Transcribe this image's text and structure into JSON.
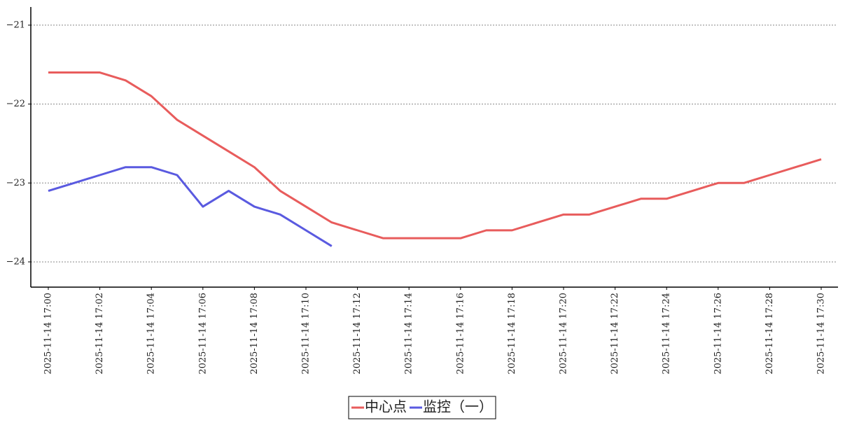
{
  "chart_data": {
    "type": "line",
    "categories": [
      "2025-11-14 17:00",
      null,
      "2025-11-14 17:02",
      null,
      "2025-11-14 17:04",
      null,
      "2025-11-14 17:06",
      null,
      "2025-11-14 17:08",
      null,
      "2025-11-14 17:10",
      null,
      "2025-11-14 17:12",
      null,
      "2025-11-14 17:14",
      null,
      "2025-11-14 17:16",
      null,
      "2025-11-14 17:18",
      null,
      "2025-11-14 17:20",
      null,
      "2025-11-14 17:22",
      null,
      "2025-11-14 17:24",
      null,
      "2025-11-14 17:26",
      null,
      "2025-11-14 17:28",
      null,
      "2025-11-14 17:30"
    ],
    "series": [
      {
        "name": "中心点",
        "color": "#e85c5c",
        "values": [
          -21.6,
          -21.6,
          -21.6,
          -21.7,
          -21.9,
          -22.2,
          -22.4,
          -22.6,
          -22.8,
          -23.1,
          -23.3,
          -23.5,
          -23.6,
          -23.7,
          -23.7,
          -23.7,
          -23.7,
          -23.6,
          -23.6,
          -23.5,
          -23.4,
          -23.4,
          -23.3,
          -23.2,
          -23.2,
          -23.1,
          -23.0,
          -23.0,
          -22.9,
          -22.8,
          -22.7
        ]
      },
      {
        "name": "监控（一）",
        "color": "#5a5ae0",
        "values": [
          -23.1,
          -23.0,
          -22.9,
          -22.8,
          -22.8,
          -22.9,
          -23.3,
          -23.1,
          -23.3,
          -23.4,
          -23.6,
          -23.8,
          null,
          null,
          null,
          null,
          null,
          null,
          null,
          null,
          null,
          null,
          null,
          null,
          null,
          null,
          null,
          null,
          null,
          null,
          null
        ]
      }
    ],
    "ylim": [
      -24.32,
      -20.77
    ],
    "yticks": [
      {
        "value": -21,
        "label": "−21"
      },
      {
        "value": -22,
        "label": "−22"
      },
      {
        "value": -23,
        "label": "−23"
      },
      {
        "value": -24,
        "label": "−24"
      }
    ],
    "grid": true,
    "legend": "bottom"
  }
}
